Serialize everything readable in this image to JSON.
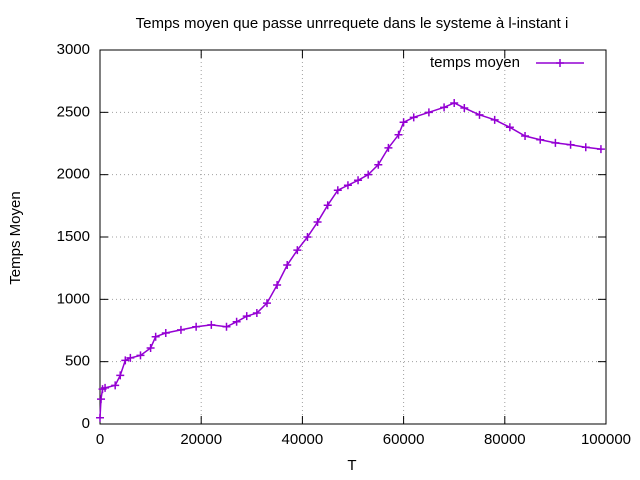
{
  "chart_data": {
    "type": "line",
    "title": "Temps moyen que passe unrrequete dans le systeme à l-instant i",
    "xlabel": "T",
    "ylabel": "Temps Moyen",
    "x": [
      0,
      200,
      500,
      1000,
      3000,
      4000,
      5000,
      6000,
      8000,
      10000,
      11000,
      13000,
      16000,
      19000,
      22000,
      25000,
      27000,
      29000,
      31000,
      33000,
      35000,
      37000,
      39000,
      41000,
      43000,
      45000,
      47000,
      49000,
      51000,
      53000,
      55000,
      57000,
      59000,
      60000,
      62000,
      65000,
      68000,
      70000,
      72000,
      75000,
      78000,
      81000,
      84000,
      87000,
      90000,
      93000,
      96000,
      99000
    ],
    "series": [
      {
        "name": "temps moyen",
        "color": "#9400d3",
        "values": [
          50,
          200,
          280,
          290,
          310,
          390,
          510,
          530,
          550,
          610,
          700,
          730,
          755,
          780,
          795,
          780,
          820,
          865,
          890,
          970,
          1115,
          1275,
          1395,
          1500,
          1620,
          1755,
          1875,
          1915,
          1955,
          2000,
          2080,
          2215,
          2320,
          2420,
          2460,
          2500,
          2540,
          2575,
          2535,
          2480,
          2440,
          2380,
          2310,
          2280,
          2255,
          2240,
          2220,
          2205
        ]
      }
    ],
    "xlim": [
      0,
      100000
    ],
    "ylim": [
      0,
      3000
    ],
    "xticks": [
      0,
      20000,
      40000,
      60000,
      80000,
      100000
    ],
    "yticks": [
      0,
      500,
      1000,
      1500,
      2000,
      2500,
      3000
    ],
    "grid": true,
    "legend": "top right"
  }
}
